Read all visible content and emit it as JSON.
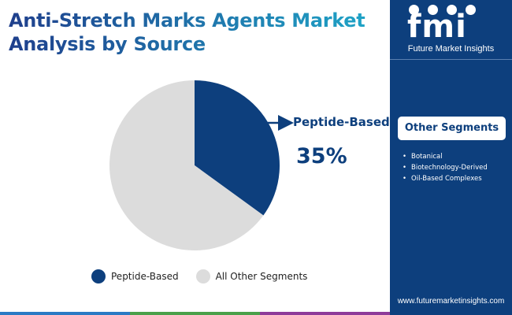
{
  "header": {
    "title_line1": "Anti-Stretch Marks Agents Market",
    "title_line2": "Analysis by Source"
  },
  "colors": {
    "title_gradient": [
      "#1f3f8c",
      "#1fa6c8"
    ],
    "primary_navy": "#0d3f7d",
    "other_gray": "#dcdcdc",
    "bar_segments": [
      "#2a7ac4",
      "#4aa04a",
      "#8e3b9a",
      "#0d3f7d"
    ]
  },
  "chart_data": {
    "type": "pie",
    "title": "Anti-Stretch Marks Agents Market Analysis by Source",
    "slices": [
      {
        "label": "Peptide-Based",
        "value": 35,
        "color": "#0d3f7d"
      },
      {
        "label": "All Other Segments",
        "value": 65,
        "color": "#dcdcdc"
      }
    ],
    "start_angle_deg": 0,
    "direction": "clockwise",
    "legend_position": "bottom",
    "callout": {
      "label": "Peptide-Based",
      "value_text": "35%"
    }
  },
  "legend": [
    {
      "label": "Peptide-Based",
      "color": "#0d3f7d"
    },
    {
      "label": "All Other Segments",
      "color": "#dcdcdc"
    }
  ],
  "side_panel": {
    "logo_text": "fmi",
    "logo_subtitle": "Future Market Insights",
    "heading": "Other Segments",
    "items": [
      "Botanical",
      "Biotechnology-Derived",
      "Oil-Based Complexes"
    ],
    "website": "www.futuremarketinsights.com"
  }
}
